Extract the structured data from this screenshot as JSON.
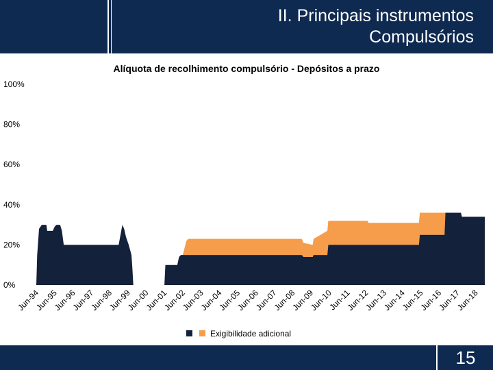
{
  "header": {
    "title_line1": "II. Principais instrumentos",
    "title_line2": "Compulsórios"
  },
  "footer": {
    "page_number": "15"
  },
  "colors": {
    "header_bg": "#0f2a50",
    "base_series": "#14213a",
    "additional_series": "#f59d4a"
  },
  "chart_data": {
    "type": "area",
    "stacked": true,
    "title": "Alíquota de recolhimento compulsório - Depósitos a prazo",
    "xlabel": "",
    "ylabel": "",
    "ylim": [
      0,
      100
    ],
    "y_ticks": [
      "0%",
      "20%",
      "40%",
      "60%",
      "80%",
      "100%"
    ],
    "y_tick_values": [
      0,
      20,
      40,
      60,
      80,
      100
    ],
    "x_ticks": [
      "Jun-94",
      "Jun-95",
      "Jun-96",
      "Jun-97",
      "Jun-98",
      "Jun-99",
      "Jun-00",
      "Jun-01",
      "Jun-02",
      "Jun-03",
      "Jun-04",
      "Jun-05",
      "Jun-06",
      "Jun-07",
      "Jun-08",
      "Jun-09",
      "Jun-10",
      "Jun-11",
      "Jun-12",
      "Jun-13",
      "Jun-14",
      "Jun-15",
      "Jun-16",
      "Jun-17",
      "Jun-18"
    ],
    "x_range": [
      1994.4,
      2018.9
    ],
    "grid": false,
    "legend_position": "bottom",
    "series": [
      {
        "name": "",
        "color": "#14213a",
        "points": [
          [
            1994.4,
            0
          ],
          [
            1994.45,
            15
          ],
          [
            1994.55,
            28
          ],
          [
            1994.7,
            30
          ],
          [
            1994.95,
            30
          ],
          [
            1995.0,
            27
          ],
          [
            1995.3,
            27
          ],
          [
            1995.4,
            29
          ],
          [
            1995.5,
            30
          ],
          [
            1995.7,
            30
          ],
          [
            1995.8,
            27
          ],
          [
            1995.9,
            20
          ],
          [
            1998.9,
            20
          ],
          [
            1999.0,
            25
          ],
          [
            1999.1,
            30
          ],
          [
            1999.2,
            28
          ],
          [
            1999.3,
            24
          ],
          [
            1999.45,
            20
          ],
          [
            1999.6,
            15
          ],
          [
            1999.65,
            8
          ],
          [
            1999.7,
            0
          ],
          [
            2001.4,
            0
          ],
          [
            2001.45,
            10
          ],
          [
            2002.1,
            10
          ],
          [
            2002.2,
            14
          ],
          [
            2002.3,
            15
          ],
          [
            2008.9,
            15
          ],
          [
            2009.0,
            14
          ],
          [
            2009.5,
            14
          ],
          [
            2009.55,
            15
          ],
          [
            2010.3,
            15
          ],
          [
            2010.35,
            20
          ],
          [
            2015.3,
            20
          ],
          [
            2015.35,
            25
          ],
          [
            2016.7,
            25
          ],
          [
            2016.75,
            36
          ],
          [
            2017.6,
            36
          ],
          [
            2017.65,
            34
          ],
          [
            2018.9,
            34
          ]
        ]
      },
      {
        "name": "Exigibilidade adicional",
        "color": "#f59d4a",
        "points": [
          [
            1994.4,
            0
          ],
          [
            2002.4,
            0
          ],
          [
            2002.6,
            7
          ],
          [
            2002.7,
            8
          ],
          [
            2008.9,
            8
          ],
          [
            2009.0,
            7
          ],
          [
            2009.5,
            6
          ],
          [
            2009.55,
            8
          ],
          [
            2010.3,
            12
          ],
          [
            2012.5,
            12
          ],
          [
            2012.55,
            11
          ],
          [
            2015.3,
            11
          ],
          [
            2015.35,
            11
          ],
          [
            2016.7,
            11
          ],
          [
            2016.75,
            0
          ],
          [
            2018.9,
            0
          ]
        ]
      }
    ]
  }
}
